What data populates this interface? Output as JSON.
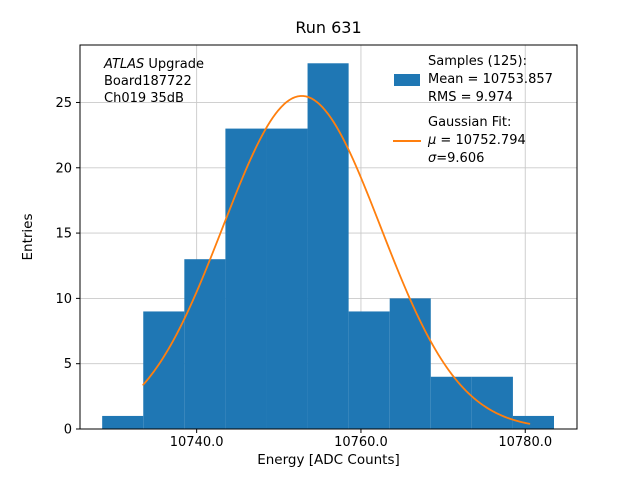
{
  "title": "Run 631",
  "annotation": {
    "experiment": "ATLAS",
    "experiment_suffix": " Upgrade",
    "board": "Board187722",
    "channel": "Ch019 35dB"
  },
  "legend": {
    "samples_header": "Samples (125):",
    "mean": "Mean = 10753.857",
    "rms": "RMS = 9.974",
    "fit_header": "Gaussian Fit:",
    "mu_symbol": "μ",
    "mu_value": " = 10752.794",
    "sigma_symbol": "σ",
    "sigma_value": "=9.606"
  },
  "chart_data": {
    "type": "bar",
    "subtype": "histogram",
    "title": "Run 631",
    "xlabel": "Energy [ADC Counts]",
    "ylabel": "Entries",
    "n_samples": 125,
    "mean": 10753.857,
    "rms": 9.974,
    "bin_edges": [
      10728.5,
      10733.5,
      10738.5,
      10743.5,
      10748.5,
      10753.5,
      10758.5,
      10763.5,
      10768.5,
      10773.5,
      10778.5,
      10783.5
    ],
    "counts": [
      1,
      9,
      13,
      23,
      23,
      28,
      9,
      10,
      4,
      4,
      1
    ],
    "gaussian": {
      "amplitude": 25.5,
      "mu": 10752.794,
      "sigma": 9.606,
      "x_range": [
        10733.5,
        10780.5
      ]
    },
    "xticks": [
      10740,
      10760,
      10780
    ],
    "xtick_labels": [
      "10740.0",
      "10760.0",
      "10780.0"
    ],
    "yticks": [
      0,
      5,
      10,
      15,
      20,
      25
    ],
    "xlim": [
      10725.8,
      10786.3
    ],
    "ylim": [
      0,
      29.4
    ],
    "grid": true,
    "legend_position": "upper right",
    "colors": {
      "hist": "#1f77b4",
      "fit": "#ff7f0e",
      "grid": "#c9c9c9",
      "spine": "#000000"
    }
  }
}
